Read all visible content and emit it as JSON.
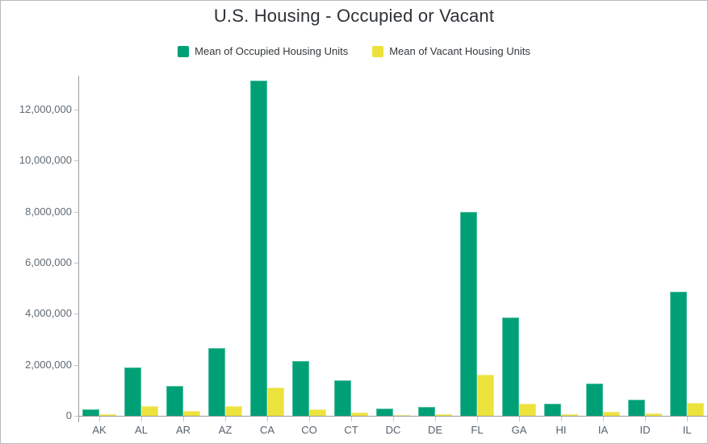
{
  "title": "U.S. Housing - Occupied or Vacant",
  "legend": [
    {
      "label": "Mean of Occupied Housing Units",
      "color": "#00a077"
    },
    {
      "label": "Mean of Vacant Housing Units",
      "color": "#ece23c"
    }
  ],
  "colors": {
    "occupied": "#00a077",
    "vacant": "#ece23c",
    "axis_line": "#9b9b9b",
    "tick_mark": "#c6c6c6",
    "axis_text": "#5f6a73",
    "title_text": "#2e3236",
    "card_border": "#b7bbbe"
  },
  "chart_data": {
    "type": "bar",
    "title": "U.S. Housing - Occupied or Vacant",
    "xlabel": "",
    "ylabel": "",
    "categories": [
      "AK",
      "AL",
      "AR",
      "AZ",
      "CA",
      "CO",
      "CT",
      "DC",
      "DE",
      "FL",
      "GA",
      "HI",
      "IA",
      "ID",
      "IL"
    ],
    "series": [
      {
        "name": "Mean of Occupied Housing Units",
        "color": "#00a077",
        "values": [
          240000,
          1900000,
          1160000,
          2650000,
          13150000,
          2140000,
          1390000,
          275000,
          350000,
          7990000,
          3840000,
          470000,
          1260000,
          630000,
          4870000
        ]
      },
      {
        "name": "Mean of Vacant Housing Units",
        "color": "#ece23c",
        "values": [
          55000,
          370000,
          200000,
          390000,
          1100000,
          240000,
          125000,
          25000,
          75000,
          1620000,
          485000,
          75000,
          160000,
          85000,
          495000
        ]
      }
    ],
    "ylim": [
      0,
      13330000
    ],
    "yticks": [
      0,
      2000000,
      4000000,
      6000000,
      8000000,
      10000000,
      12000000
    ],
    "ytick_labels": [
      "0",
      "2,000,000",
      "4,000,000",
      "6,000,000",
      "8,000,000",
      "10,000,000",
      "12,000,000"
    ],
    "grid": false,
    "legend_position": "top"
  }
}
